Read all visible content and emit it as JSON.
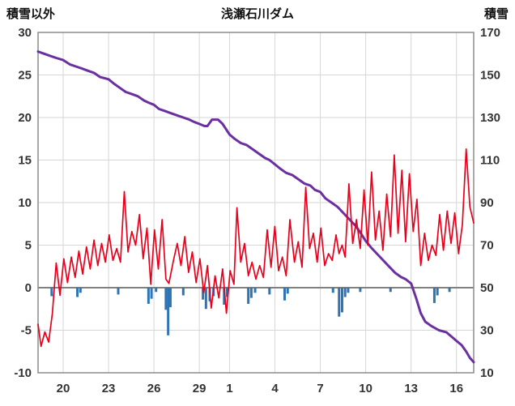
{
  "chart_data": {
    "type": "line",
    "title": "浅瀬石川ダム",
    "grid": true,
    "legend": "none",
    "x_axis": {
      "t_min": 0,
      "t_max": 28.8,
      "ticks": [
        {
          "t": 1.66,
          "label": "20"
        },
        {
          "t": 4.66,
          "label": "23"
        },
        {
          "t": 7.66,
          "label": "26"
        },
        {
          "t": 10.66,
          "label": "29"
        },
        {
          "t": 12.66,
          "label": "1"
        },
        {
          "t": 15.66,
          "label": "4"
        },
        {
          "t": 18.66,
          "label": "7"
        },
        {
          "t": 21.66,
          "label": "10"
        },
        {
          "t": 24.66,
          "label": "13"
        },
        {
          "t": 27.66,
          "label": "16"
        }
      ]
    },
    "left_axis": {
      "label": "積雪以外",
      "min": -10,
      "max": 30,
      "ticks": [
        30,
        25,
        20,
        15,
        10,
        5,
        0,
        -5,
        -10
      ]
    },
    "right_axis": {
      "label": "積雪",
      "min": 10,
      "max": 170,
      "ticks": [
        170,
        150,
        130,
        110,
        90,
        70,
        50,
        30,
        10
      ]
    },
    "colors": {
      "red_line": "#e8001c",
      "purple_line": "#6a30a0",
      "blue_bars": "#2e75b6",
      "grid": "#d6d6d6",
      "border": "#8c8c8c",
      "zero_line": "#808080",
      "text": "#333333"
    },
    "series": [
      {
        "name": "blue_bars",
        "axis": "left",
        "type": "bar",
        "color_key": "blue_bars",
        "width": 3,
        "points": [
          [
            0.9,
            -1.0
          ],
          [
            2.6,
            -1.1
          ],
          [
            2.8,
            -0.6
          ],
          [
            5.3,
            -0.8
          ],
          [
            7.3,
            -1.9
          ],
          [
            7.5,
            -1.3
          ],
          [
            7.8,
            -0.5
          ],
          [
            8.45,
            -2.6
          ],
          [
            8.6,
            -5.6
          ],
          [
            8.75,
            -2.3
          ],
          [
            9.6,
            -0.9
          ],
          [
            10.9,
            -1.4
          ],
          [
            11.1,
            -2.5
          ],
          [
            11.35,
            -1.6
          ],
          [
            11.6,
            -1.0
          ],
          [
            12.3,
            -2.0
          ],
          [
            12.5,
            -1.1
          ],
          [
            13.9,
            -1.9
          ],
          [
            14.1,
            -1.2
          ],
          [
            14.35,
            -0.6
          ],
          [
            15.3,
            -0.8
          ],
          [
            16.3,
            -1.5
          ],
          [
            16.5,
            -0.7
          ],
          [
            19.5,
            -0.6
          ],
          [
            19.9,
            -3.4
          ],
          [
            20.1,
            -2.9
          ],
          [
            20.3,
            -1.1
          ],
          [
            20.5,
            -0.6
          ],
          [
            21.3,
            -0.5
          ],
          [
            23.3,
            -0.5
          ],
          [
            26.2,
            -1.8
          ],
          [
            26.4,
            -0.9
          ],
          [
            27.2,
            -0.5
          ]
        ]
      },
      {
        "name": "purple_line_snow_depth",
        "axis": "right",
        "type": "line",
        "color_key": "purple_line",
        "width": 3,
        "points": [
          [
            0,
            161
          ],
          [
            0.4,
            160
          ],
          [
            0.8,
            159
          ],
          [
            1.2,
            158
          ],
          [
            1.66,
            157
          ],
          [
            2.1,
            155
          ],
          [
            2.5,
            154
          ],
          [
            2.9,
            153
          ],
          [
            3.3,
            152
          ],
          [
            3.7,
            151
          ],
          [
            4.1,
            149
          ],
          [
            4.66,
            148
          ],
          [
            5.0,
            146
          ],
          [
            5.4,
            144
          ],
          [
            5.8,
            142
          ],
          [
            6.2,
            141
          ],
          [
            6.6,
            140
          ],
          [
            7.0,
            138
          ],
          [
            7.3,
            137
          ],
          [
            7.66,
            136
          ],
          [
            8.0,
            134
          ],
          [
            8.4,
            133
          ],
          [
            8.8,
            132
          ],
          [
            9.2,
            131
          ],
          [
            9.6,
            130
          ],
          [
            10.0,
            129
          ],
          [
            10.3,
            128
          ],
          [
            10.66,
            127
          ],
          [
            11.0,
            126
          ],
          [
            11.2,
            126
          ],
          [
            11.5,
            129
          ],
          [
            11.9,
            129
          ],
          [
            12.2,
            127
          ],
          [
            12.66,
            122
          ],
          [
            13.0,
            120
          ],
          [
            13.4,
            118
          ],
          [
            13.8,
            117
          ],
          [
            14.2,
            115
          ],
          [
            14.6,
            113
          ],
          [
            15.0,
            111
          ],
          [
            15.3,
            110
          ],
          [
            15.66,
            108
          ],
          [
            16.0,
            106
          ],
          [
            16.4,
            104
          ],
          [
            16.8,
            103
          ],
          [
            17.2,
            101
          ],
          [
            17.6,
            99
          ],
          [
            18.0,
            98
          ],
          [
            18.3,
            96
          ],
          [
            18.66,
            95
          ],
          [
            19.0,
            92
          ],
          [
            19.4,
            90
          ],
          [
            19.8,
            88
          ],
          [
            20.2,
            85
          ],
          [
            20.6,
            82
          ],
          [
            21.0,
            79
          ],
          [
            21.3,
            76
          ],
          [
            21.66,
            72
          ],
          [
            22.0,
            69
          ],
          [
            22.4,
            66
          ],
          [
            22.8,
            63
          ],
          [
            23.2,
            60
          ],
          [
            23.6,
            57
          ],
          [
            24.0,
            55
          ],
          [
            24.3,
            54
          ],
          [
            24.66,
            52
          ],
          [
            25.0,
            45
          ],
          [
            25.3,
            38
          ],
          [
            25.6,
            34
          ],
          [
            26.0,
            32
          ],
          [
            26.5,
            30
          ],
          [
            27.0,
            29
          ],
          [
            27.5,
            26
          ],
          [
            27.66,
            25
          ],
          [
            28.0,
            23
          ],
          [
            28.3,
            20
          ],
          [
            28.55,
            17
          ],
          [
            28.8,
            15
          ]
        ]
      },
      {
        "name": "red_line_non_snow",
        "axis": "left",
        "type": "line",
        "color_key": "red_line",
        "width": 1.7,
        "points": [
          [
            0.0,
            -4.3
          ],
          [
            0.2,
            -6.9
          ],
          [
            0.45,
            -5.2
          ],
          [
            0.7,
            -6.4
          ],
          [
            0.95,
            -3.0
          ],
          [
            1.2,
            2.9
          ],
          [
            1.45,
            -0.9
          ],
          [
            1.7,
            3.4
          ],
          [
            1.95,
            0.6
          ],
          [
            2.2,
            3.6
          ],
          [
            2.45,
            1.2
          ],
          [
            2.7,
            4.3
          ],
          [
            2.95,
            1.6
          ],
          [
            3.2,
            4.8
          ],
          [
            3.45,
            2.2
          ],
          [
            3.7,
            5.6
          ],
          [
            3.95,
            2.6
          ],
          [
            4.2,
            5.2
          ],
          [
            4.45,
            3.0
          ],
          [
            4.7,
            6.2
          ],
          [
            4.95,
            3.2
          ],
          [
            5.2,
            4.6
          ],
          [
            5.45,
            3.0
          ],
          [
            5.7,
            11.3
          ],
          [
            5.95,
            4.2
          ],
          [
            6.2,
            6.6
          ],
          [
            6.45,
            5.0
          ],
          [
            6.7,
            8.6
          ],
          [
            6.95,
            3.4
          ],
          [
            7.2,
            7.0
          ],
          [
            7.45,
            0.4
          ],
          [
            7.7,
            6.8
          ],
          [
            7.95,
            2.2
          ],
          [
            8.2,
            8.0
          ],
          [
            8.45,
            1.0
          ],
          [
            8.65,
            0.5
          ],
          [
            8.95,
            3.2
          ],
          [
            9.2,
            5.2
          ],
          [
            9.45,
            2.6
          ],
          [
            9.7,
            6.0
          ],
          [
            9.95,
            1.8
          ],
          [
            10.2,
            4.2
          ],
          [
            10.45,
            0.6
          ],
          [
            10.7,
            3.4
          ],
          [
            10.95,
            -0.6
          ],
          [
            11.2,
            2.6
          ],
          [
            11.45,
            -2.4
          ],
          [
            11.7,
            1.4
          ],
          [
            11.95,
            -1.2
          ],
          [
            12.2,
            2.2
          ],
          [
            12.45,
            -3.0
          ],
          [
            12.7,
            2.0
          ],
          [
            12.95,
            0.4
          ],
          [
            13.15,
            9.4
          ],
          [
            13.4,
            3.0
          ],
          [
            13.65,
            5.2
          ],
          [
            13.9,
            1.4
          ],
          [
            14.15,
            3.0
          ],
          [
            14.4,
            1.0
          ],
          [
            14.65,
            2.6
          ],
          [
            14.9,
            1.2
          ],
          [
            15.15,
            6.8
          ],
          [
            15.4,
            2.4
          ],
          [
            15.65,
            7.2
          ],
          [
            15.9,
            2.0
          ],
          [
            16.15,
            3.6
          ],
          [
            16.4,
            1.4
          ],
          [
            16.65,
            8.0
          ],
          [
            16.95,
            3.0
          ],
          [
            17.2,
            5.4
          ],
          [
            17.45,
            2.4
          ],
          [
            17.7,
            11.8
          ],
          [
            17.95,
            4.6
          ],
          [
            18.2,
            6.4
          ],
          [
            18.45,
            3.0
          ],
          [
            18.7,
            7.0
          ],
          [
            18.95,
            2.6
          ],
          [
            19.2,
            4.0
          ],
          [
            19.45,
            3.2
          ],
          [
            19.7,
            6.2
          ],
          [
            19.9,
            4.0
          ],
          [
            20.1,
            5.0
          ],
          [
            20.3,
            3.6
          ],
          [
            20.55,
            12.2
          ],
          [
            20.8,
            5.2
          ],
          [
            21.05,
            8.0
          ],
          [
            21.3,
            4.6
          ],
          [
            21.55,
            11.5
          ],
          [
            21.8,
            5.0
          ],
          [
            22.05,
            13.6
          ],
          [
            22.3,
            5.6
          ],
          [
            22.55,
            9.0
          ],
          [
            22.8,
            4.4
          ],
          [
            23.05,
            11.0
          ],
          [
            23.3,
            6.0
          ],
          [
            23.55,
            15.6
          ],
          [
            23.8,
            6.4
          ],
          [
            24.05,
            13.8
          ],
          [
            24.3,
            5.4
          ],
          [
            24.55,
            13.4
          ],
          [
            24.8,
            6.6
          ],
          [
            25.05,
            10.4
          ],
          [
            25.3,
            2.6
          ],
          [
            25.55,
            6.4
          ],
          [
            25.8,
            3.2
          ],
          [
            26.05,
            5.0
          ],
          [
            26.3,
            3.8
          ],
          [
            26.55,
            8.6
          ],
          [
            26.8,
            4.4
          ],
          [
            27.05,
            9.0
          ],
          [
            27.3,
            5.2
          ],
          [
            27.55,
            8.8
          ],
          [
            27.8,
            4.0
          ],
          [
            28.05,
            7.4
          ],
          [
            28.3,
            16.3
          ],
          [
            28.55,
            9.5
          ],
          [
            28.8,
            7.6
          ]
        ]
      }
    ]
  }
}
